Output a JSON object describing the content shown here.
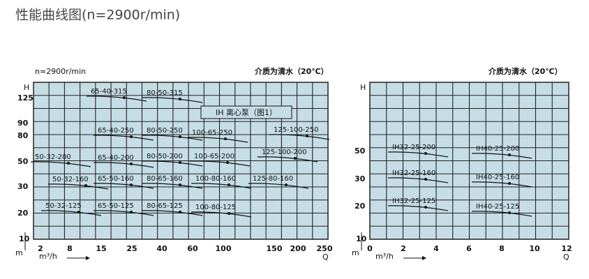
{
  "header": {
    "title": "性能曲线图(n=2900r/min)"
  },
  "left_chart": {
    "speed": "n=2900r/min",
    "medium": "介质为清水（20℃）",
    "box_label": "IH 离心泵（图1）",
    "y_axis_label": "H",
    "y_unit": "m",
    "x_axis_label": "Q",
    "x_unit": "m³/h",
    "y_ticks": [
      125,
      90,
      80,
      50,
      30,
      20,
      10
    ],
    "x_ticks": [
      2,
      8,
      15,
      25,
      40,
      60,
      100,
      150,
      200,
      250
    ],
    "curves": [
      "65-40-315",
      "80-50-315",
      "65-40-250",
      "80-50-250",
      "100-65-250",
      "125-100-250",
      "50-32-200",
      "65-40-200",
      "80-50-200",
      "100-65-200",
      "125-100-200",
      "50-32-160",
      "65-50-160",
      "80-65-160",
      "100-80-160",
      "125-80-160",
      "50-32-125",
      "65-50-125",
      "80-65-125",
      "100-80-125"
    ]
  },
  "right_chart": {
    "medium": "介质为清水（20℃）",
    "y_axis_label": "H",
    "y_unit": "m",
    "x_axis_label": "Q",
    "x_unit": "m³/h",
    "y_ticks": [
      50,
      30,
      20,
      10
    ],
    "x_ticks": [
      0,
      2,
      4,
      6,
      8,
      10,
      12
    ],
    "curves": [
      "IH32-25-200",
      "IH40-25-200",
      "IH32-25-160",
      "IH40-25-160",
      "IH32-25-125",
      "IH40-25-125"
    ]
  }
}
